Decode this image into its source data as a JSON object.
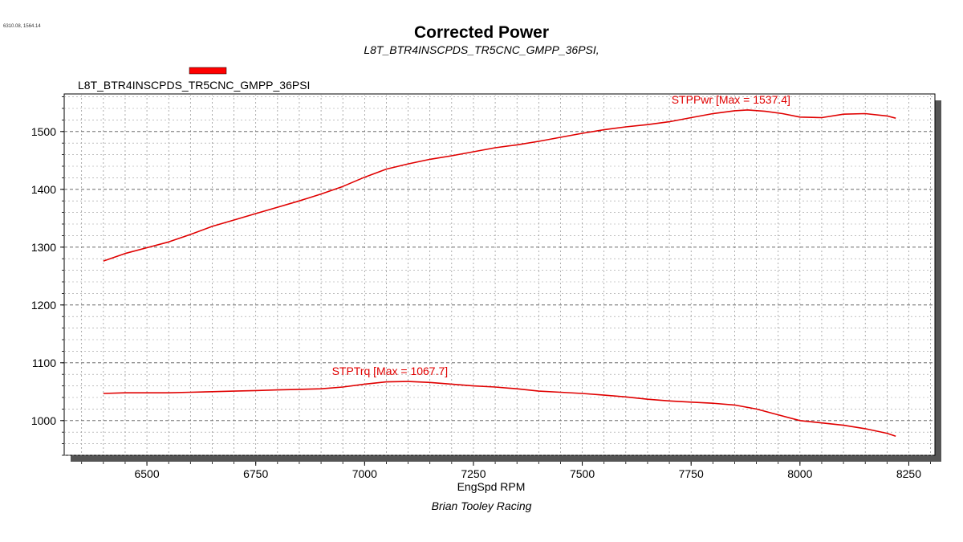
{
  "corner_readout": "6310.08, 1564.14",
  "chart_data": {
    "type": "line",
    "title": "Corrected Power",
    "subtitle": "L8T_BTR4INSCPDS_TR5CNC_GMPP_36PSI,",
    "xlabel": "EngSpd RPM",
    "footer": "Brian Tooley Racing",
    "xlim": [
      6310,
      8310
    ],
    "ylim": [
      940,
      1565
    ],
    "xticks": [
      6500,
      6750,
      7000,
      7250,
      7500,
      7750,
      8000,
      8250
    ],
    "yticks": [
      1000,
      1100,
      1200,
      1300,
      1400,
      1500
    ],
    "grid": true,
    "legend": {
      "label": "L8T_BTR4INSCPDS_TR5CNC_GMPP_36PSI",
      "color": "#ff0000",
      "position": "top-left"
    },
    "series": [
      {
        "name": "STPPwr",
        "annotation": "STPPwr [Max = 1537.4]",
        "color": "#e00000",
        "x": [
          6400,
          6450,
          6500,
          6550,
          6600,
          6650,
          6700,
          6750,
          6800,
          6850,
          6900,
          6950,
          7000,
          7050,
          7100,
          7150,
          7200,
          7250,
          7300,
          7350,
          7400,
          7450,
          7500,
          7550,
          7600,
          7650,
          7700,
          7750,
          7800,
          7850,
          7880,
          7920,
          7960,
          8000,
          8050,
          8100,
          8150,
          8200,
          8220
        ],
        "y": [
          1276,
          1289,
          1299,
          1309,
          1322,
          1336,
          1347,
          1358,
          1369,
          1380,
          1392,
          1405,
          1421,
          1435,
          1444,
          1452,
          1458,
          1465,
          1472,
          1477,
          1483,
          1490,
          1497,
          1503,
          1508,
          1512,
          1517,
          1524,
          1531,
          1536,
          1537.4,
          1535,
          1531,
          1525,
          1524,
          1530,
          1531,
          1527,
          1523
        ]
      },
      {
        "name": "STPTrq",
        "annotation": "STPTrq [Max = 1067.7]",
        "color": "#e00000",
        "x": [
          6400,
          6450,
          6500,
          6550,
          6600,
          6650,
          6700,
          6750,
          6800,
          6850,
          6900,
          6950,
          7000,
          7050,
          7100,
          7150,
          7200,
          7250,
          7300,
          7350,
          7400,
          7450,
          7500,
          7550,
          7600,
          7650,
          7700,
          7750,
          7800,
          7850,
          7900,
          7950,
          8000,
          8050,
          8100,
          8150,
          8200,
          8220
        ],
        "y": [
          1047,
          1048,
          1048,
          1048,
          1049,
          1050,
          1051,
          1052,
          1053,
          1054,
          1055,
          1058,
          1063,
          1067,
          1067.7,
          1066,
          1063,
          1060,
          1058,
          1055,
          1051,
          1049,
          1047,
          1044,
          1041,
          1037,
          1034,
          1032,
          1030,
          1027,
          1020,
          1010,
          1000,
          996,
          992,
          986,
          978,
          973
        ]
      }
    ]
  }
}
